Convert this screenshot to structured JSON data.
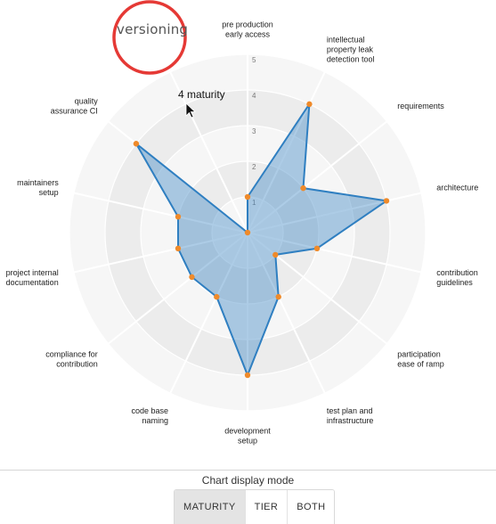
{
  "chart_data": {
    "type": "radar",
    "axes": [
      "pre production\nearly access",
      "intellectual\nproperty leak\ndetection tool",
      "requirements",
      "architecture",
      "contribution\nguidelines",
      "participation\nease of ramp",
      "test plan and\ninfrastructure",
      "development\nsetup",
      "code base\nnaming",
      "compliance for\ncontribution",
      "project internal\ndocumentation",
      "maintainers\nsetup",
      "quality\nassurance CI",
      "versioning"
    ],
    "values": [
      1,
      4,
      2,
      4,
      2,
      1,
      2,
      4,
      2,
      2,
      2,
      2,
      4,
      0
    ],
    "rlim": [
      0,
      5
    ],
    "ticks": [
      1,
      2,
      3,
      4,
      5
    ],
    "series_color": "#2f7fc1",
    "fill_color": "rgba(74,141,200,0.45)",
    "point_color": "#ef8a2a"
  },
  "tooltip": {
    "text": "4 maturity"
  },
  "highlight": {
    "label": "versioning",
    "ring_color": "#e53935"
  },
  "display_mode": {
    "title": "Chart display mode",
    "options": [
      "MATURITY",
      "TIER",
      "BOTH"
    ],
    "selected": "MATURITY"
  }
}
